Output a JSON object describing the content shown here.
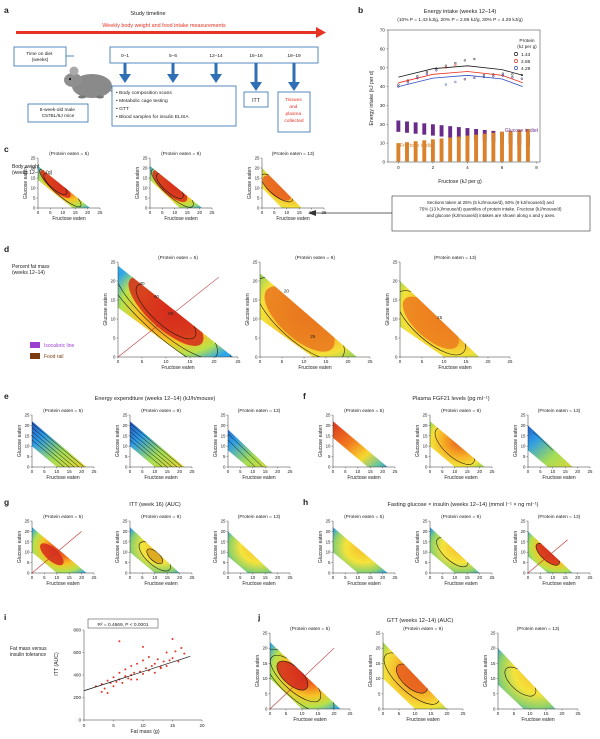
{
  "panel_labels": [
    "a",
    "b",
    "c",
    "d",
    "e",
    "f",
    "g",
    "h",
    "i",
    "j"
  ],
  "timeline": {
    "title": "Study timeline",
    "banner": "Weekly body weight and food intake measurements",
    "time_on_diet": "Time on diet\n(weeks)",
    "mouse_label": "8-week-old male\nC57BL/6J mice",
    "weeks": [
      "0–1",
      "5–6",
      "12–14",
      "15–16",
      "18–19"
    ],
    "box_1214": "• Body composition scans\n• Metabolic cage testing\n• GTT\n• Blood samples for insulin ELISA",
    "box_itt": "ITT",
    "box_tissues": "Tissues\nand\nplasma\ncollected"
  },
  "panel_c": {
    "row_label": "Body weight\n(weeks 12–14) (g)",
    "titles": [
      "(Protein eaten = 5)",
      "(Protein eaten = 9)",
      "(Protein eaten = 13)"
    ],
    "annotation": "Sections taken at 25% (5 kJ/mouse/d), 50% (9 kJ/mouse/d) and\n75% (13 kJ/mouse/d) quantiles of protein intake. Fructose (kJ/mouse/d)\nand glucose (kJ/mouse/d) intakes are shown along x and y axes."
  },
  "panel_d": {
    "row_label": "Percent fat mass\n(weeks 12–14)",
    "titles": [
      "(Protein eaten = 5)",
      "(Protein eaten = 9)",
      "(Protein eaten = 13)"
    ],
    "legend_isocaloric": "Isocaloric line",
    "legend_food_rail": "Food rail",
    "contours": [
      "30",
      "40",
      "50",
      "20",
      "25",
      "25"
    ]
  },
  "panel_e": {
    "header": "Energy expenditure (weeks 12–14) (kJ/h/mouse)",
    "titles": [
      "(Protein eaten = 5)",
      "(Protein eaten = 9)",
      "(Protein eaten = 13)"
    ]
  },
  "panel_f": {
    "header": "Plasma FGF21 levels (pg ml⁻¹)",
    "titles": [
      "(Protein eaten = 5)",
      "(Protein eaten = 9)",
      "(Protein eaten = 13)"
    ]
  },
  "panel_g": {
    "header": "ITT (week 16) (AUC)",
    "titles": [
      "(Protein eaten = 5)",
      "(Protein eaten = 9)",
      "(Protein eaten = 13)"
    ]
  },
  "panel_h": {
    "header": "Fasting glucose × insulin (weeks 12–14) (mmol l⁻¹ × ng ml⁻¹)",
    "titles": [
      "(Protein eaten = 5)",
      "(Protein eaten = 9)",
      "(Protein eaten = 13)"
    ]
  },
  "panel_j": {
    "header": "GTT (weeks 12–14) (AUC)",
    "titles": [
      "(Protein eaten = 5)",
      "(Protein eaten = 9)",
      "(Protein eaten = 13)"
    ]
  },
  "axis_text": {
    "x_label": "Fructose eaten",
    "y_label": "Glucose eaten",
    "x_ticks_20": [
      "0",
      "5",
      "10",
      "15",
      "20"
    ],
    "x_ticks_25": [
      "0",
      "5",
      "10",
      "15",
      "20",
      "25"
    ],
    "y_ticks_20": [
      "0",
      "5",
      "10",
      "15",
      "20"
    ],
    "y_ticks_25": [
      "0",
      "5",
      "10",
      "15",
      "20",
      "25"
    ]
  },
  "panel_i": {
    "row_label": "Fat mass versus\ninsulin tolerance",
    "stat": "R² = 0.4669, P < 0.0001"
  },
  "colors": {
    "accent_red": "#e63323",
    "timeline_blue": "#2e6fb5",
    "protein_1_43": "#1a1a1a",
    "protein_2_86": "#e63323",
    "protein_4_29": "#3050c0",
    "glucose_bar": "#6a2a8a",
    "fructose_bar": "#d9822b",
    "isocaloric": "#9b3fd3",
    "food_rail": "#7a3b10"
  },
  "chart_data": [
    {
      "id": "b",
      "type": "scatter",
      "title": "Energy intake (weeks 12–14)",
      "subtitle": "(10% P = 1.43 kJ/g, 20% P = 2.86 kJ/g, 30% P = 4.29 kJ/g)",
      "xlabel": "Fructose (kJ per g)",
      "ylabel": "Energy intake (kJ per d)",
      "xlim": [
        -0.6,
        8.2
      ],
      "ylim": [
        0,
        70
      ],
      "x_ticks": [
        0,
        2,
        4,
        6,
        8
      ],
      "y_ticks": [
        0,
        10,
        20,
        30,
        40,
        50,
        60,
        70
      ],
      "legend_title": "Protein\n(kJ per g)",
      "series": [
        {
          "name": "1.43",
          "fit": [
            [
              0,
              45
            ],
            [
              2,
              49.5
            ],
            [
              4,
              51
            ],
            [
              6,
              49
            ],
            [
              7.2,
              46
            ]
          ]
        },
        {
          "name": "2.86",
          "fit": [
            [
              0,
              42
            ],
            [
              2,
              46.5
            ],
            [
              4,
              48
            ],
            [
              6,
              46
            ],
            [
              7.2,
              42
            ]
          ]
        },
        {
          "name": "4.29",
          "fit": [
            [
              0,
              40
            ],
            [
              2,
              44.5
            ],
            [
              4,
              46
            ],
            [
              6,
              44
            ],
            [
              7.2,
              40
            ]
          ]
        }
      ],
      "bar_series": [
        {
          "name": "Glucose in diet",
          "x": [
            0,
            0.5,
            1,
            1.5,
            2,
            2.5,
            3,
            3.5,
            4,
            4.5,
            5,
            5.5,
            6,
            6.5,
            7,
            7.5
          ],
          "top": [
            22,
            21.5,
            21,
            20.5,
            20,
            19.5,
            19,
            18.5,
            18,
            17.5,
            17,
            16.5,
            16,
            15.5,
            15,
            14.5
          ]
        },
        {
          "name": "Fructose in diet",
          "x": [
            0,
            0.5,
            1,
            1.5,
            2,
            2.5,
            3,
            3.5,
            4,
            4.5,
            5,
            5.5,
            6,
            6.5,
            7,
            7.5
          ],
          "top": [
            10,
            10.5,
            11,
            11.5,
            12,
            12.5,
            13,
            13.5,
            14,
            14.5,
            15,
            15.5,
            16,
            16.5,
            17,
            17.5
          ]
        }
      ]
    },
    {
      "id": "i",
      "type": "scatter",
      "xlabel": "Fat mass (g)",
      "ylabel": "ITT (AUC)",
      "xlim": [
        0,
        20
      ],
      "ylim": [
        0,
        800
      ],
      "x_ticks": [
        0,
        5,
        10,
        15,
        20
      ],
      "y_ticks": [
        0,
        200,
        400,
        600,
        800
      ],
      "fit": {
        "slope": 17,
        "intercept": 260
      },
      "note": "Individual red points; regression line",
      "series": [
        {
          "points": [
            [
              2,
              300
            ],
            [
              3,
              320
            ],
            [
              3.5,
              280
            ],
            [
              4,
              350
            ],
            [
              4.5,
              330
            ],
            [
              5,
              300
            ],
            [
              5,
              380
            ],
            [
              5.5,
              340
            ],
            [
              6,
              360
            ],
            [
              6,
              420
            ],
            [
              6.5,
              330
            ],
            [
              7,
              390
            ],
            [
              7,
              450
            ],
            [
              7.5,
              370
            ],
            [
              8,
              400
            ],
            [
              8,
              480
            ],
            [
              8.5,
              420
            ],
            [
              9,
              360
            ],
            [
              9,
              500
            ],
            [
              9.5,
              430
            ],
            [
              10,
              410
            ],
            [
              10,
              530
            ],
            [
              10.5,
              460
            ],
            [
              11,
              440
            ],
            [
              11,
              560
            ],
            [
              11.5,
              480
            ],
            [
              12,
              500
            ],
            [
              12,
              420
            ],
            [
              12.5,
              540
            ],
            [
              13,
              470
            ],
            [
              13.5,
              520
            ],
            [
              14,
              600
            ],
            [
              14,
              480
            ],
            [
              15,
              550
            ],
            [
              15.5,
              610
            ],
            [
              16,
              520
            ],
            [
              16.5,
              640
            ],
            [
              17,
              590
            ],
            [
              6,
              700
            ],
            [
              15,
              720
            ],
            [
              10,
              650
            ],
            [
              3,
              250
            ],
            [
              4,
              240
            ],
            [
              13,
              460
            ],
            [
              14.5,
              530
            ],
            [
              8,
              360
            ]
          ]
        }
      ]
    }
  ]
}
